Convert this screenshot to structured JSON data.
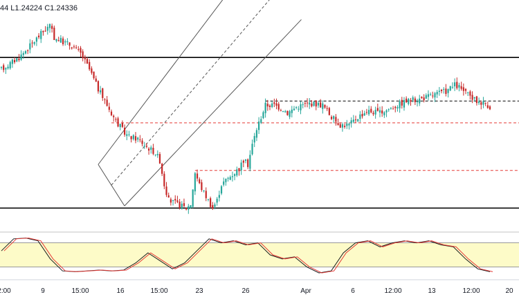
{
  "header": {
    "ohlc_text": "44  L1.24224  C1.24336"
  },
  "chart_data": {
    "type": "candlestick",
    "instrument_hint": "GBPUSD-like FX pair",
    "ohlc_readout": {
      "low": 1.24224,
      "close": 1.24336
    },
    "ylim": [
      0,
      100
    ],
    "x_ticks": [
      "2:00",
      "9",
      "15:00",
      "16",
      "15:00",
      "23",
      "26",
      "Apr",
      "6",
      "12:00",
      "13",
      "12:00",
      "20"
    ],
    "levels": [
      {
        "name": "resistance",
        "style": "solid",
        "value": 78
      },
      {
        "name": "support",
        "style": "solid",
        "value": 2
      },
      {
        "name": "consolidation-top",
        "style": "dashed-black",
        "value": 56
      },
      {
        "name": "fib-upper",
        "style": "dashed-red",
        "value": 45
      },
      {
        "name": "fib-lower",
        "style": "dashed-red",
        "value": 21
      }
    ],
    "channel": {
      "start_index": 44,
      "start_price": 24,
      "end_index": 108,
      "end_price": 118,
      "lower_offset": -22
    },
    "price_path": [
      [
        0,
        72
      ],
      [
        8,
        78
      ],
      [
        14,
        85
      ],
      [
        18,
        90
      ],
      [
        22,
        94
      ],
      [
        24,
        88
      ],
      [
        28,
        86
      ],
      [
        32,
        84
      ],
      [
        36,
        80
      ],
      [
        40,
        72
      ],
      [
        44,
        62
      ],
      [
        48,
        54
      ],
      [
        52,
        46
      ],
      [
        56,
        40
      ],
      [
        58,
        38
      ],
      [
        62,
        37
      ],
      [
        66,
        33
      ],
      [
        70,
        30
      ],
      [
        72,
        26
      ],
      [
        74,
        14
      ],
      [
        76,
        6
      ],
      [
        80,
        4
      ],
      [
        84,
        2
      ],
      [
        86,
        4
      ],
      [
        88,
        20
      ],
      [
        90,
        14
      ],
      [
        92,
        10
      ],
      [
        94,
        6
      ],
      [
        96,
        2
      ],
      [
        98,
        6
      ],
      [
        100,
        14
      ],
      [
        104,
        18
      ],
      [
        108,
        22
      ],
      [
        110,
        26
      ],
      [
        112,
        24
      ],
      [
        114,
        34
      ],
      [
        116,
        42
      ],
      [
        118,
        48
      ],
      [
        120,
        54
      ],
      [
        124,
        54
      ],
      [
        128,
        52
      ],
      [
        130,
        50
      ],
      [
        134,
        53
      ],
      [
        140,
        55
      ],
      [
        146,
        54
      ],
      [
        150,
        48
      ],
      [
        154,
        44
      ],
      [
        158,
        44
      ],
      [
        162,
        48
      ],
      [
        166,
        51
      ],
      [
        172,
        50
      ],
      [
        178,
        53
      ],
      [
        184,
        56
      ],
      [
        190,
        57
      ],
      [
        196,
        59
      ],
      [
        202,
        61
      ],
      [
        206,
        64
      ],
      [
        208,
        63
      ],
      [
        212,
        59
      ],
      [
        216,
        56
      ],
      [
        220,
        55
      ],
      [
        222,
        53
      ]
    ],
    "stochastic": {
      "panel_ylim": [
        0,
        100
      ],
      "band": [
        20,
        80
      ],
      "k_path": [
        [
          0,
          60
        ],
        [
          4,
          90
        ],
        [
          8,
          92
        ],
        [
          12,
          85
        ],
        [
          16,
          40
        ],
        [
          20,
          10
        ],
        [
          24,
          8
        ],
        [
          28,
          10
        ],
        [
          32,
          12
        ],
        [
          36,
          10
        ],
        [
          40,
          12
        ],
        [
          44,
          30
        ],
        [
          48,
          55
        ],
        [
          52,
          35
        ],
        [
          56,
          15
        ],
        [
          60,
          30
        ],
        [
          64,
          60
        ],
        [
          68,
          90
        ],
        [
          72,
          80
        ],
        [
          76,
          85
        ],
        [
          80,
          75
        ],
        [
          84,
          80
        ],
        [
          88,
          50
        ],
        [
          92,
          40
        ],
        [
          96,
          45
        ],
        [
          100,
          20
        ],
        [
          104,
          5
        ],
        [
          108,
          10
        ],
        [
          112,
          55
        ],
        [
          116,
          80
        ],
        [
          120,
          85
        ],
        [
          124,
          70
        ],
        [
          128,
          80
        ],
        [
          132,
          85
        ],
        [
          136,
          80
        ],
        [
          140,
          85
        ],
        [
          144,
          75
        ],
        [
          148,
          70
        ],
        [
          152,
          40
        ],
        [
          156,
          15
        ],
        [
          160,
          8
        ]
      ]
    }
  }
}
